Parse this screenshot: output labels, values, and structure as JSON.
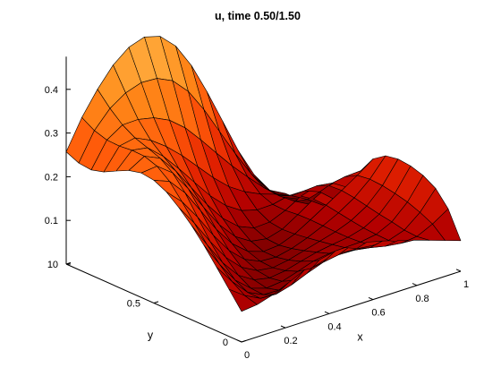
{
  "chart_data": {
    "type": "surface",
    "title": "u, time 0.50/1.50",
    "xlabel": "x",
    "ylabel": "y",
    "zlabel": "",
    "xlim": [
      0,
      1
    ],
    "ylim": [
      0,
      1
    ],
    "zlim": [
      0,
      0.45
    ],
    "x_ticks": [
      {
        "value": 0,
        "label": "0"
      },
      {
        "value": 0.2,
        "label": "0.2"
      },
      {
        "value": 0.4,
        "label": "0.4"
      },
      {
        "value": 0.6,
        "label": "0.6"
      },
      {
        "value": 0.8,
        "label": "0.8"
      },
      {
        "value": 1,
        "label": "1"
      }
    ],
    "y_ticks": [
      {
        "value": 0,
        "label": "0"
      },
      {
        "value": 0.5,
        "label": "0.5"
      },
      {
        "value": 1,
        "label": "1"
      }
    ],
    "z_ticks": [
      {
        "value": 0,
        "label": "0"
      },
      {
        "value": 0.1,
        "label": "0.1"
      },
      {
        "value": 0.2,
        "label": "0.2"
      },
      {
        "value": 0.3,
        "label": "0.3"
      },
      {
        "value": 0.4,
        "label": "0.4"
      }
    ],
    "grid": false,
    "colormap": [
      "#5c0000",
      "#b30000",
      "#e32200",
      "#ff5a0a",
      "#ff8c1a",
      "#ffb347"
    ],
    "edge_color": "#000000",
    "grid_x": [
      0,
      0.0714,
      0.1429,
      0.2143,
      0.2857,
      0.3571,
      0.4286,
      0.5,
      0.5714,
      0.6429,
      0.7143,
      0.7857,
      0.8571,
      0.9286,
      1
    ],
    "grid_y": [
      0,
      0.0714,
      0.1429,
      0.2143,
      0.2857,
      0.3571,
      0.4286,
      0.5,
      0.5714,
      0.6429,
      0.7143,
      0.7857,
      0.8571,
      0.9286,
      1
    ],
    "z": [
      [
        0.07,
        0.074,
        0.085,
        0.101,
        0.118,
        0.131,
        0.139,
        0.14,
        0.136,
        0.127,
        0.117,
        0.106,
        0.094,
        0.082,
        0.07
      ],
      [
        0.108,
        0.082,
        0.064,
        0.062,
        0.072,
        0.087,
        0.1,
        0.106,
        0.105,
        0.099,
        0.091,
        0.086,
        0.09,
        0.107,
        0.13
      ],
      [
        0.146,
        0.101,
        0.065,
        0.048,
        0.047,
        0.058,
        0.073,
        0.083,
        0.086,
        0.084,
        0.08,
        0.08,
        0.092,
        0.121,
        0.164
      ],
      [
        0.183,
        0.128,
        0.08,
        0.05,
        0.039,
        0.043,
        0.054,
        0.066,
        0.072,
        0.074,
        0.075,
        0.081,
        0.098,
        0.132,
        0.181
      ],
      [
        0.216,
        0.16,
        0.107,
        0.067,
        0.045,
        0.038,
        0.043,
        0.053,
        0.062,
        0.068,
        0.073,
        0.083,
        0.103,
        0.139,
        0.19
      ],
      [
        0.244,
        0.196,
        0.143,
        0.095,
        0.061,
        0.042,
        0.037,
        0.043,
        0.053,
        0.063,
        0.073,
        0.087,
        0.109,
        0.144,
        0.193
      ],
      [
        0.267,
        0.233,
        0.186,
        0.133,
        0.087,
        0.055,
        0.039,
        0.037,
        0.045,
        0.058,
        0.074,
        0.092,
        0.115,
        0.146,
        0.188
      ],
      [
        0.281,
        0.267,
        0.229,
        0.176,
        0.122,
        0.078,
        0.049,
        0.037,
        0.04,
        0.054,
        0.075,
        0.097,
        0.119,
        0.142,
        0.168
      ],
      [
        0.285,
        0.289,
        0.262,
        0.214,
        0.159,
        0.108,
        0.07,
        0.048,
        0.042,
        0.052,
        0.074,
        0.098,
        0.117,
        0.126,
        0.128
      ],
      [
        0.278,
        0.299,
        0.283,
        0.242,
        0.192,
        0.142,
        0.099,
        0.069,
        0.054,
        0.056,
        0.071,
        0.092,
        0.104,
        0.099,
        0.077
      ],
      [
        0.264,
        0.3,
        0.294,
        0.263,
        0.223,
        0.18,
        0.138,
        0.104,
        0.081,
        0.071,
        0.072,
        0.08,
        0.08,
        0.066,
        0.036
      ],
      [
        0.249,
        0.297,
        0.304,
        0.287,
        0.261,
        0.229,
        0.192,
        0.155,
        0.123,
        0.1,
        0.083,
        0.071,
        0.056,
        0.036,
        0.011
      ],
      [
        0.241,
        0.298,
        0.321,
        0.322,
        0.314,
        0.297,
        0.268,
        0.229,
        0.187,
        0.146,
        0.109,
        0.074,
        0.043,
        0.019,
        0
      ],
      [
        0.244,
        0.307,
        0.346,
        0.37,
        0.382,
        0.38,
        0.363,
        0.327,
        0.274,
        0.212,
        0.15,
        0.093,
        0.047,
        0.016,
        0
      ],
      [
        0.257,
        0.324,
        0.377,
        0.421,
        0.45,
        0.462,
        0.452,
        0.418,
        0.362,
        0.29,
        0.211,
        0.132,
        0.066,
        0.019,
        0
      ]
    ]
  }
}
